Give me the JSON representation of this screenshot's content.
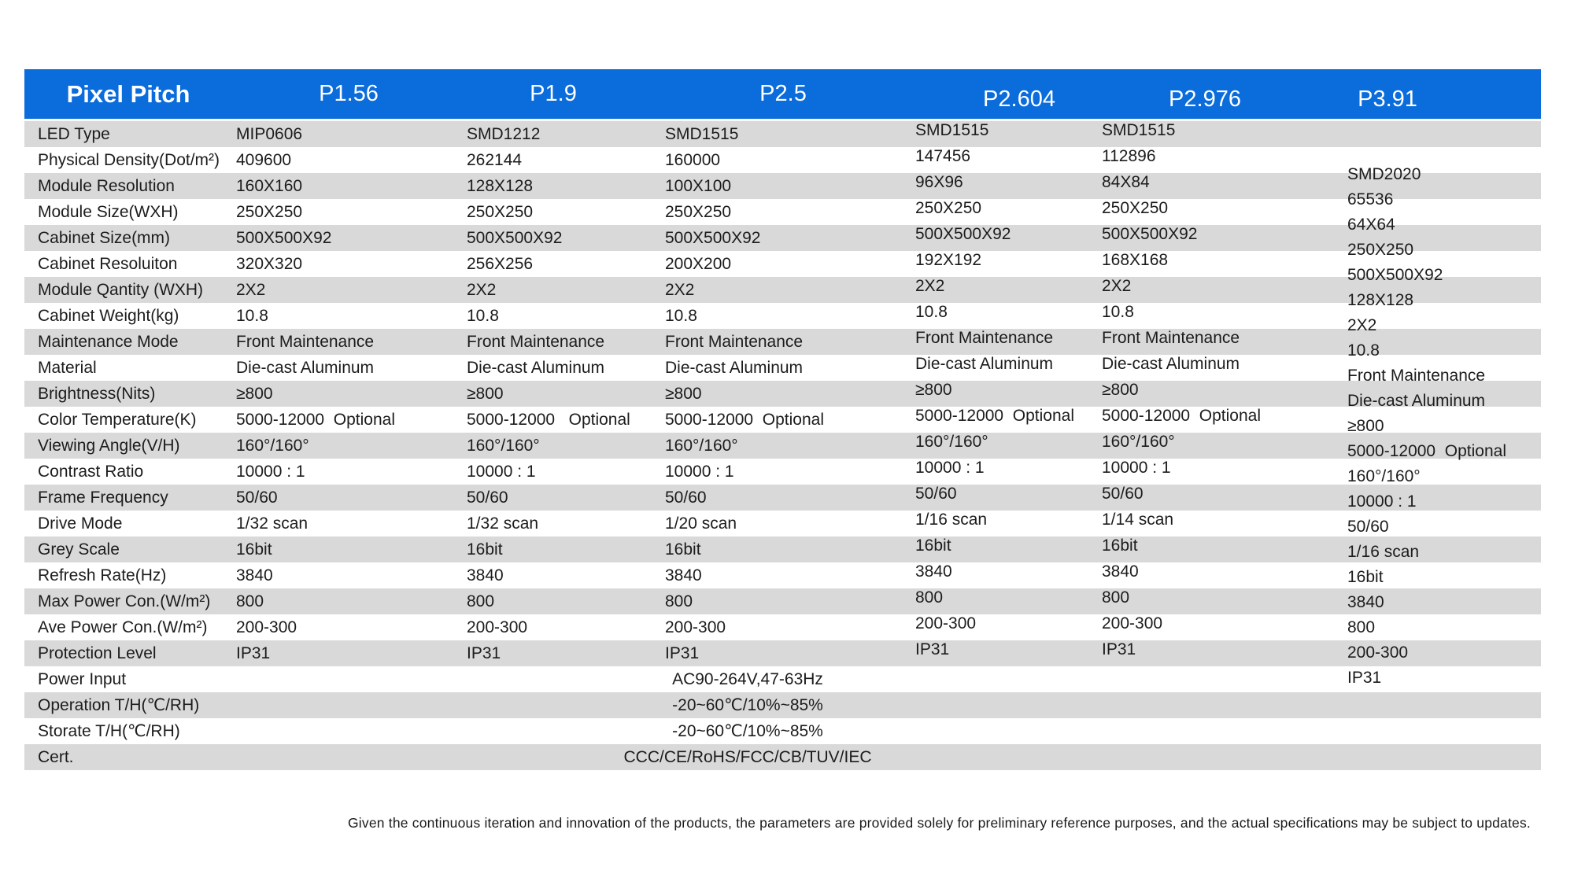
{
  "header": {
    "corner_label": "Pixel Pitch",
    "columns": [
      "P1.56",
      "P1.9",
      "P2.5",
      "P2.604",
      "P2.976",
      "P3.91"
    ]
  },
  "rows": [
    {
      "label": "LED Type",
      "values": [
        "MIP0606",
        "SMD1212",
        "SMD1515",
        "SMD1515",
        "SMD1515"
      ]
    },
    {
      "label": "Physical Density(Dot/m²)",
      "values": [
        "409600",
        "262144",
        "160000",
        "147456",
        "112896"
      ]
    },
    {
      "label": "Module Resolution",
      "values": [
        "160X160",
        "128X128",
        "100X100",
        "96X96",
        "84X84"
      ]
    },
    {
      "label": "Module Size(WXH)",
      "values": [
        "250X250",
        "250X250",
        "250X250",
        "250X250",
        "250X250"
      ]
    },
    {
      "label": "Cabinet Size(mm)",
      "values": [
        "500X500X92",
        "500X500X92",
        "500X500X92",
        "500X500X92",
        "500X500X92"
      ]
    },
    {
      "label": "Cabinet Resoluiton",
      "values": [
        "320X320",
        "256X256",
        "200X200",
        "192X192",
        "168X168"
      ]
    },
    {
      "label": "Module Qantity (WXH)",
      "values": [
        "2X2",
        "2X2",
        "2X2",
        "2X2",
        "2X2"
      ]
    },
    {
      "label": "Cabinet Weight(kg)",
      "values": [
        "10.8",
        "10.8",
        "10.8",
        "10.8",
        "10.8"
      ]
    },
    {
      "label": "Maintenance Mode",
      "values": [
        "Front Maintenance",
        "Front Maintenance",
        "Front Maintenance",
        "Front Maintenance",
        "Front Maintenance"
      ]
    },
    {
      "label": "Material",
      "values": [
        "Die-cast Aluminum",
        "Die-cast Aluminum",
        "Die-cast Aluminum",
        "Die-cast Aluminum",
        "Die-cast Aluminum"
      ]
    },
    {
      "label": "Brightness(Nits)",
      "values": [
        "≥800",
        "≥800",
        "≥800",
        "≥800",
        "≥800"
      ]
    },
    {
      "label": "Color Temperature(K)",
      "values": [
        "5000-12000  Optional",
        "5000-12000   Optional",
        "5000-12000  Optional",
        "5000-12000  Optional",
        "5000-12000  Optional"
      ]
    },
    {
      "label": "Viewing Angle(V/H)",
      "values": [
        "160°/160°",
        "160°/160°",
        "160°/160°",
        "160°/160°",
        "160°/160°"
      ]
    },
    {
      "label": "Contrast Ratio",
      "values": [
        "10000 : 1",
        "10000 : 1",
        "10000 : 1",
        "10000 : 1",
        "10000 : 1"
      ]
    },
    {
      "label": "Frame Frequency",
      "values": [
        "50/60",
        "50/60",
        "50/60",
        "50/60",
        "50/60"
      ]
    },
    {
      "label": "Drive Mode",
      "values": [
        "1/32 scan",
        "1/32 scan",
        "1/20 scan",
        "1/16 scan",
        "1/14 scan"
      ]
    },
    {
      "label": "Grey Scale",
      "values": [
        "16bit",
        "16bit",
        "16bit",
        "16bit",
        "16bit"
      ]
    },
    {
      "label": "Refresh Rate(Hz)",
      "values": [
        "3840",
        "3840",
        "3840",
        "3840",
        "3840"
      ]
    },
    {
      "label": "Max Power Con.(W/m²)",
      "values": [
        "800",
        "800",
        "800",
        "800",
        "800"
      ]
    },
    {
      "label": "Ave Power Con.(W/m²)",
      "values": [
        "200-300",
        "200-300",
        "200-300",
        "200-300",
        "200-300"
      ]
    },
    {
      "label": "Protection Level",
      "values": [
        "IP31",
        "IP31",
        "IP31",
        "IP31",
        "IP31"
      ]
    },
    {
      "label": "Power Input",
      "merged": "AC90-264V,47-63Hz"
    },
    {
      "label": "Operation T/H(℃/RH)",
      "merged": "-20~60℃/10%~85%"
    },
    {
      "label": "Storate T/H(℃/RH)",
      "merged": "-20~60℃/10%~85%"
    },
    {
      "label": "Cert.",
      "merged": "CCC/CE/RoHS/FCC/CB/TUV/IEC"
    }
  ],
  "p391_values": [
    "SMD2020",
    "65536",
    "64X64",
    "250X250",
    "500X500X92",
    "128X128",
    "2X2",
    "10.8",
    "Front Maintenance",
    "Die-cast Aluminum",
    "≥800",
    "5000-12000  Optional",
    "160°/160°",
    "10000 : 1",
    "50/60",
    "1/16 scan",
    "16bit",
    "3840",
    "800",
    "200-300",
    "IP31"
  ],
  "footnote": "Given the continuous iteration and innovation of the products, the parameters are provided solely for preliminary reference purposes, and the actual specifications may be subject to updates.",
  "colors": {
    "header_bg": "#0b6cdb",
    "band": "#d9d9d9",
    "text": "#1c1c1c",
    "header_text": "#ffffff"
  }
}
